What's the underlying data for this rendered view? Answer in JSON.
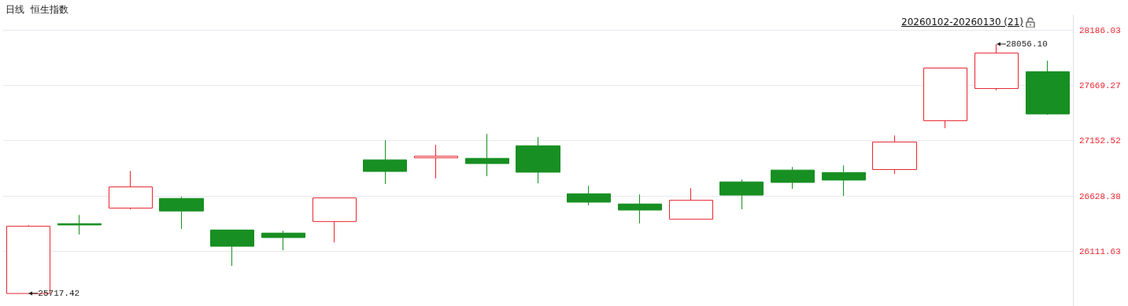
{
  "chart_data": {
    "type": "candlestick",
    "title": "日线  恒生指数",
    "categories": [
      null,
      null,
      null,
      null,
      null,
      null,
      null,
      null,
      null,
      null,
      null,
      null,
      null,
      null,
      null,
      null,
      null,
      null,
      null,
      null,
      null
    ],
    "ohlc": [
      [
        25717.42,
        26358,
        25717.42,
        26348
      ],
      [
        26372,
        26454,
        26271,
        26360
      ],
      [
        26518,
        26867,
        26507,
        26717
      ],
      [
        26609,
        26626,
        26323,
        26491
      ],
      [
        26313,
        26313,
        25976,
        26160
      ],
      [
        26284,
        26306,
        26123,
        26242
      ],
      [
        26392,
        26614,
        26197,
        26614
      ],
      [
        26971,
        27155,
        26744,
        26862
      ],
      [
        26990,
        27111,
        26796,
        27005
      ],
      [
        26985,
        27214,
        26818,
        26936
      ],
      [
        27103,
        27185,
        26751,
        26855
      ],
      [
        26653,
        26727,
        26544,
        26574
      ],
      [
        26557,
        26646,
        26375,
        26500
      ],
      [
        26414,
        26705,
        26414,
        26592
      ],
      [
        26764,
        26786,
        26507,
        26640
      ],
      [
        26875,
        26904,
        26699,
        26759
      ],
      [
        26852,
        26919,
        26633,
        26781
      ],
      [
        26880,
        27199,
        26840,
        27138
      ],
      [
        27338,
        27832,
        27268,
        27832
      ],
      [
        27640,
        28056.1,
        27623,
        27973
      ],
      [
        27798,
        27901,
        27394,
        27401
      ]
    ],
    "colors": [
      "#e8262f",
      "#188f22",
      "#e8262f",
      "#188f22",
      "#188f22",
      "#188f22",
      "#e8262f",
      "#188f22",
      "#e8262f",
      "#188f22",
      "#188f22",
      "#188f22",
      "#188f22",
      "#e8262f",
      "#188f22",
      "#188f22",
      "#188f22",
      "#e8262f",
      "#e8262f",
      "#e8262f",
      "#188f22"
    ],
    "ylim": [
      25600,
      28330
    ],
    "yticks": [
      26111.63,
      26628.38,
      27152.52,
      27669.27,
      28186.03
    ],
    "grid": "y",
    "subtitle": "20260102-20260130 (21)",
    "annotations": [
      "25717.42",
      "28056.10"
    ]
  }
}
